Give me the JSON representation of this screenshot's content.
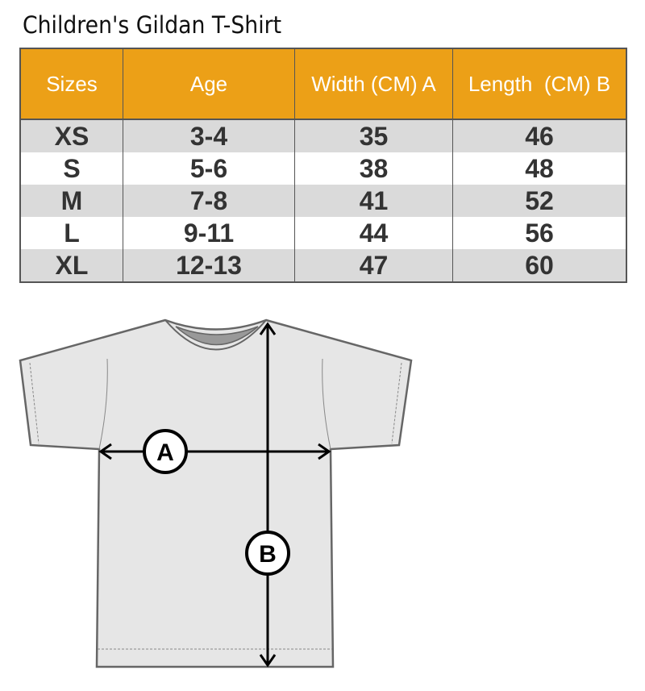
{
  "title": "Children's Gildan T-Shirt",
  "table": {
    "headers": [
      "Sizes",
      "Age",
      "Width (CM) A",
      "Length  (CM) B"
    ],
    "rows": [
      [
        "XS",
        "3-4",
        "35",
        "46"
      ],
      [
        "S",
        "5-6",
        "38",
        "48"
      ],
      [
        "M",
        "7-8",
        "41",
        "52"
      ],
      [
        "L",
        "9-11",
        "44",
        "56"
      ],
      [
        "XL",
        "12-13",
        "47",
        "60"
      ]
    ]
  },
  "diagram": {
    "label_a": "A",
    "label_b": "B"
  },
  "colors": {
    "header": "#eca017",
    "alt_row": "#dadada",
    "shirt": "#e6e6e6"
  }
}
